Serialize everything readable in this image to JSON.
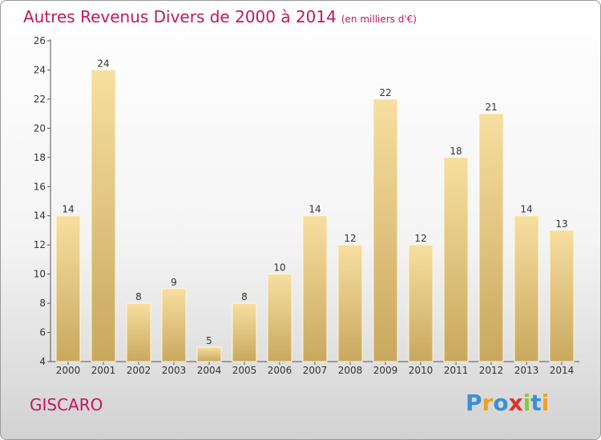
{
  "title": "Autres Revenus Divers de 2000 à 2014",
  "unit": "(en milliers d'€)",
  "commune": "GISCARO",
  "logo": {
    "text": "Proxiti",
    "letters": [
      "P",
      "r",
      "o",
      "x",
      "i",
      "t",
      "i"
    ],
    "colors": [
      "#3a8fd6",
      "#f0a020",
      "#3a8fd6",
      "#e03030",
      "#8cc63f",
      "#3a8fd6",
      "#f0a020"
    ]
  },
  "colors": {
    "title": "#c2185b",
    "bar_light": "#f7dfa0",
    "bar_dark": "#c9a85e"
  },
  "chart_data": {
    "type": "bar",
    "categories": [
      "2000",
      "2001",
      "2002",
      "2003",
      "2004",
      "2005",
      "2006",
      "2007",
      "2008",
      "2009",
      "2010",
      "2011",
      "2012",
      "2013",
      "2014"
    ],
    "values": [
      14,
      24,
      8,
      9,
      5,
      8,
      10,
      14,
      12,
      22,
      12,
      18,
      21,
      14,
      13
    ],
    "ylim": [
      4,
      26
    ],
    "yticks": [
      4,
      6,
      8,
      10,
      12,
      14,
      16,
      18,
      20,
      22,
      24,
      26
    ],
    "grid": false,
    "xlabel": "",
    "ylabel": ""
  }
}
